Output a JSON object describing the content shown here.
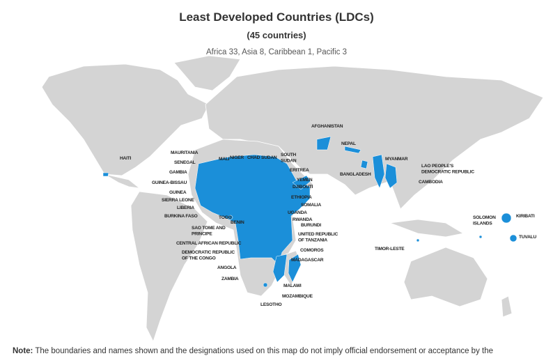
{
  "header": {
    "title": "Least Developed Countries (LDCs)",
    "subtitle": "(45 countries)",
    "summary": "Africa 33, Asia 8, Caribbean 1, Pacific 3"
  },
  "labels": [
    [
      "AFGHANISTAN"
    ],
    [
      "NEPAL"
    ],
    [
      "MYANMAR"
    ],
    [
      "BANGLADESH"
    ],
    [
      "LAO PEOPLE'S",
      "DEMOCRATIC REPUBLIC"
    ],
    [
      "CAMBODIA"
    ],
    [
      "HAITI"
    ],
    [
      "MAURITANIA"
    ],
    [
      "SENEGAL"
    ],
    [
      "GAMBIA"
    ],
    [
      "GUINEA-BISSAU"
    ],
    [
      "GUINEA"
    ],
    [
      "SIERRA LEONE"
    ],
    [
      "LIBERIA"
    ],
    [
      "BURKINA FASO"
    ],
    [
      "MALI"
    ],
    [
      "NIGER"
    ],
    [
      "CHAD"
    ],
    [
      "SUDAN"
    ],
    [
      "SOUTH",
      "SUDAN"
    ],
    [
      "ERITREA"
    ],
    [
      "YEMEN"
    ],
    [
      "DJIBOUTI"
    ],
    [
      "ETHIOPIA"
    ],
    [
      "SOMALIA"
    ],
    [
      "UGANDA"
    ],
    [
      "RWANDA"
    ],
    [
      "BURUNDI"
    ],
    [
      "UNITED REPUBLIC",
      "OF TANZANIA"
    ],
    [
      "COMOROS"
    ],
    [
      "MADAGASCAR"
    ],
    [
      "TOGO"
    ],
    [
      "BENIN"
    ],
    [
      "SAO TOME AND",
      "PRINCIPE"
    ],
    [
      "CENTRAL AFRICAN REPUBLIC"
    ],
    [
      "DEMOCRATIC REPUBLIC",
      "OF THE CONGO"
    ],
    [
      "ANGOLA"
    ],
    [
      "ZAMBIA"
    ],
    [
      "MALAWI"
    ],
    [
      "MOZAMBIQUE"
    ],
    [
      "LESOTHO"
    ],
    [
      "TIMOR-LESTE"
    ],
    [
      "SOLOMON",
      "ISLANDS"
    ],
    [
      "KIRIBATI"
    ],
    [
      "TUVALU"
    ]
  ],
  "note": {
    "label": "Note:",
    "text": "The boundaries and names shown and the designations used on this map do not imply official endorsement or acceptance by the"
  }
}
